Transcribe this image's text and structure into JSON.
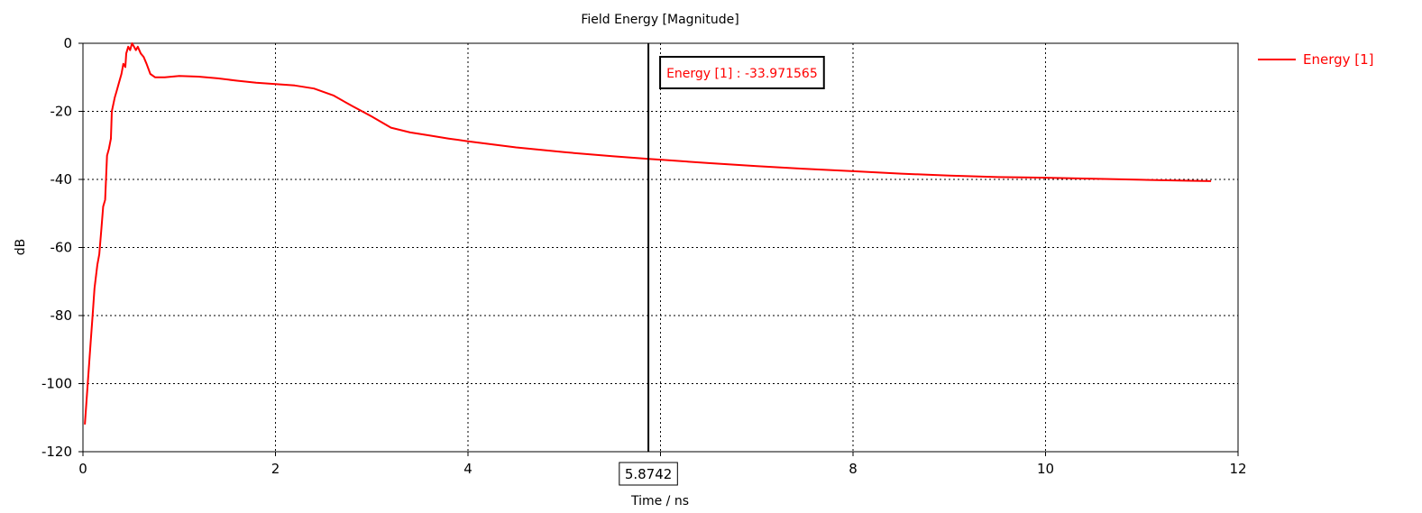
{
  "chart_data": {
    "type": "line",
    "title": "Field Energy [Magnitude]",
    "xlabel": "Time / ns",
    "ylabel": "dB",
    "xlim": [
      0,
      12
    ],
    "ylim": [
      -120,
      0
    ],
    "x_ticks": [
      0,
      2,
      4,
      6,
      8,
      10,
      12
    ],
    "y_ticks": [
      0,
      -20,
      -40,
      -60,
      -80,
      -100,
      -120
    ],
    "grid": true,
    "legend_position": "right",
    "series": [
      {
        "name": "Energy [1]",
        "color": "#ff0000",
        "points": [
          [
            0.02,
            -112
          ],
          [
            0.05,
            -100
          ],
          [
            0.08,
            -88
          ],
          [
            0.1,
            -80
          ],
          [
            0.12,
            -72
          ],
          [
            0.15,
            -65
          ],
          [
            0.17,
            -62
          ],
          [
            0.19,
            -55
          ],
          [
            0.21,
            -48
          ],
          [
            0.23,
            -46
          ],
          [
            0.25,
            -33
          ],
          [
            0.27,
            -31
          ],
          [
            0.29,
            -28
          ],
          [
            0.3,
            -20
          ],
          [
            0.33,
            -16
          ],
          [
            0.35,
            -14
          ],
          [
            0.37,
            -12
          ],
          [
            0.4,
            -9
          ],
          [
            0.42,
            -6
          ],
          [
            0.44,
            -7
          ],
          [
            0.45,
            -3
          ],
          [
            0.47,
            -1
          ],
          [
            0.49,
            -2
          ],
          [
            0.51,
            0
          ],
          [
            0.53,
            -1
          ],
          [
            0.55,
            -2
          ],
          [
            0.57,
            -1
          ],
          [
            0.6,
            -3
          ],
          [
            0.63,
            -4
          ],
          [
            0.66,
            -6
          ],
          [
            0.7,
            -9
          ],
          [
            0.75,
            -10
          ],
          [
            0.85,
            -10
          ],
          [
            1.0,
            -9.6
          ],
          [
            1.2,
            -9.8
          ],
          [
            1.4,
            -10.3
          ],
          [
            1.6,
            -11.0
          ],
          [
            1.8,
            -11.6
          ],
          [
            2.0,
            -12.0
          ],
          [
            2.2,
            -12.4
          ],
          [
            2.4,
            -13.3
          ],
          [
            2.6,
            -15.3
          ],
          [
            2.8,
            -18.5
          ],
          [
            3.0,
            -21.5
          ],
          [
            3.2,
            -24.8
          ],
          [
            3.4,
            -26.2
          ],
          [
            3.6,
            -27.1
          ],
          [
            3.8,
            -28.0
          ],
          [
            4.0,
            -28.8
          ],
          [
            4.5,
            -30.6
          ],
          [
            5.0,
            -32.0
          ],
          [
            5.5,
            -33.2
          ],
          [
            5.8742,
            -33.971565
          ],
          [
            6.0,
            -34.2
          ],
          [
            6.5,
            -35.2
          ],
          [
            7.0,
            -36.1
          ],
          [
            7.5,
            -36.9
          ],
          [
            8.0,
            -37.6
          ],
          [
            8.5,
            -38.3
          ],
          [
            9.0,
            -38.9
          ],
          [
            9.5,
            -39.3
          ],
          [
            10.0,
            -39.5
          ],
          [
            10.5,
            -39.8
          ],
          [
            11.0,
            -40.1
          ],
          [
            11.5,
            -40.4
          ],
          [
            11.72,
            -40.5
          ]
        ]
      }
    ],
    "marker": {
      "x": 5.8742,
      "x_label": "5.8742",
      "readout": "Energy [1] : -33.971565",
      "readout_color": "#ff0000"
    }
  }
}
